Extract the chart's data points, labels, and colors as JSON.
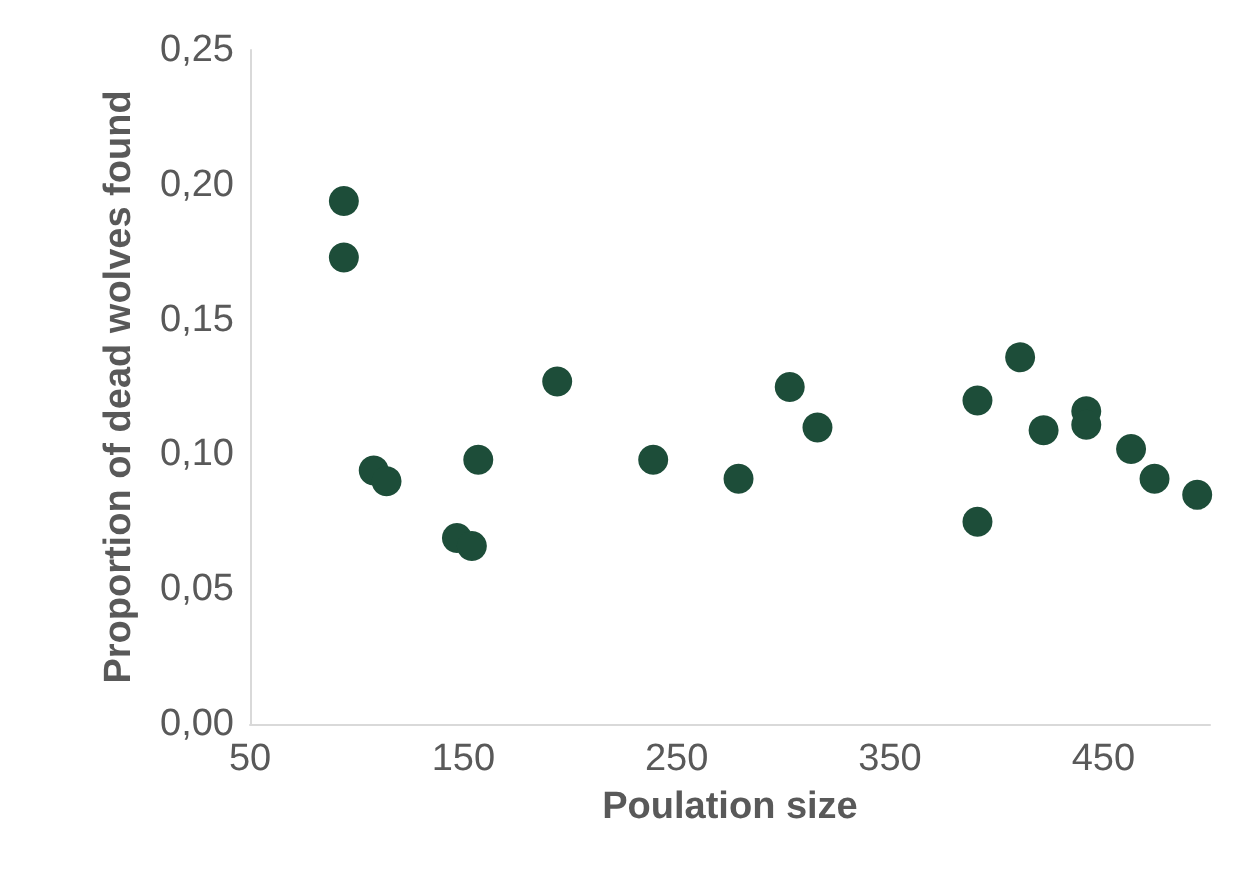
{
  "chart_data": {
    "type": "scatter",
    "xlabel": "Poulation size",
    "ylabel": "Proportion of dead wolves found",
    "x": [
      94,
      94,
      108,
      114,
      147,
      154,
      157,
      194,
      239,
      279,
      303,
      316,
      391,
      391,
      411,
      422,
      442,
      442,
      463,
      474,
      494
    ],
    "series": [
      {
        "color": "#1d4d39",
        "values": [
          0.194,
          0.173,
          0.094,
          0.09,
          0.069,
          0.066,
          0.098,
          0.127,
          0.098,
          0.091,
          0.125,
          0.11,
          0.12,
          0.075,
          0.136,
          0.109,
          0.116,
          0.111,
          0.102,
          0.091,
          0.085
        ]
      }
    ],
    "xlim": [
      50,
      500
    ],
    "xticks": [
      50,
      150,
      250,
      350,
      450
    ],
    "ylim": [
      0,
      0.25
    ],
    "yticks": [
      {
        "value": 0,
        "label": "0,00"
      },
      {
        "value": 0.05,
        "label": "0,05"
      },
      {
        "value": 0.1,
        "label": "0,10"
      },
      {
        "value": 0.15,
        "label": "0,15"
      },
      {
        "value": 0.2,
        "label": "0,20"
      },
      {
        "value": 0.25,
        "label": "0,25"
      }
    ],
    "grid": false,
    "marker": "circle"
  }
}
